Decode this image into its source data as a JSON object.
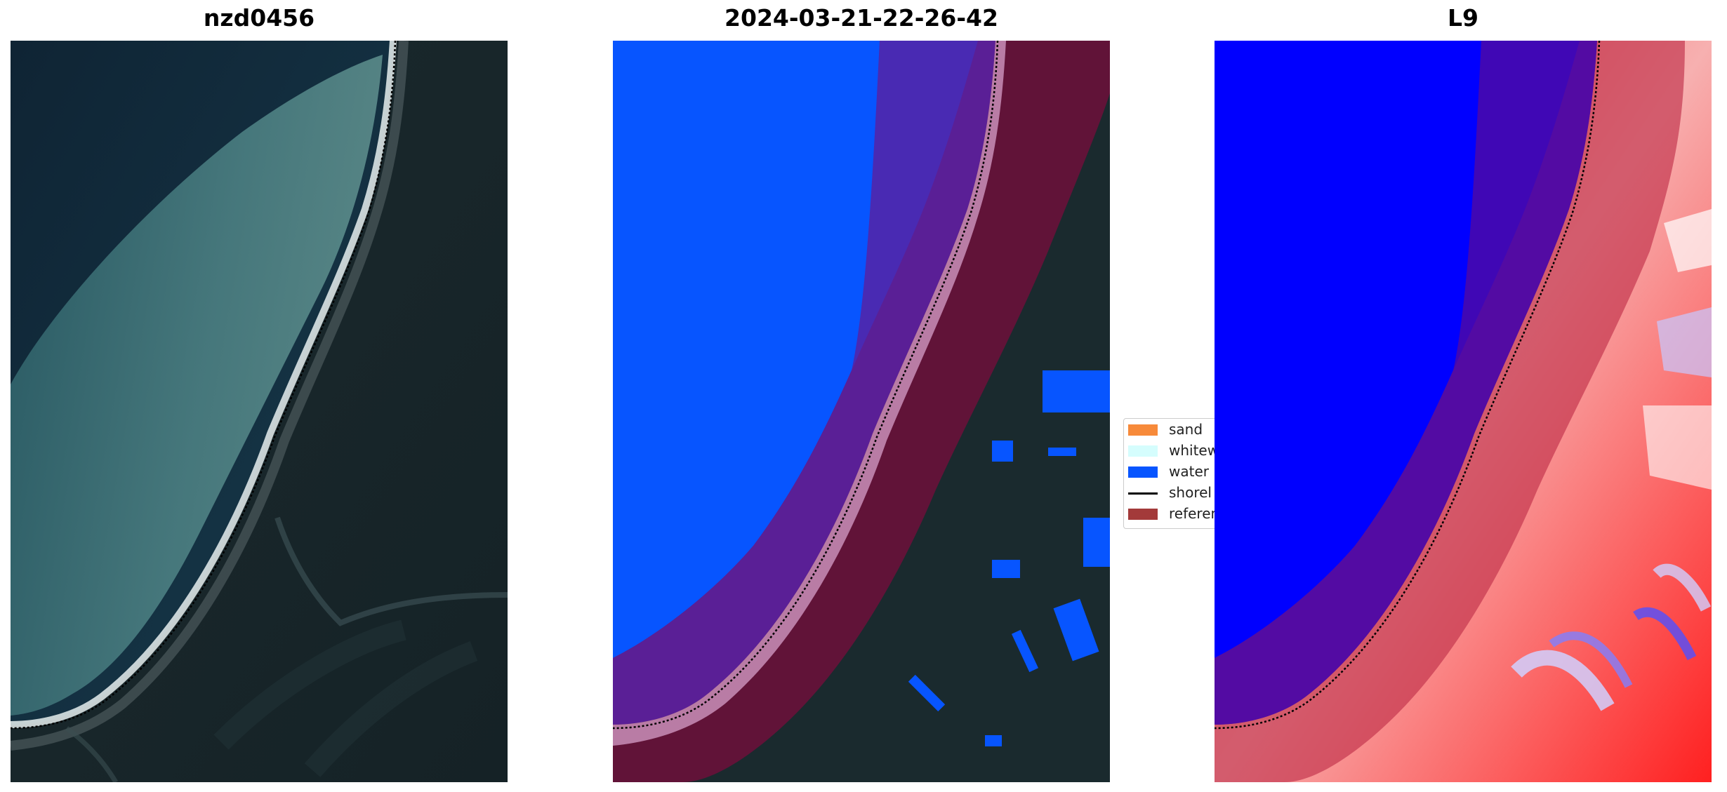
{
  "panels": [
    {
      "title": "nzd0456"
    },
    {
      "title": "2024-03-21-22-26-42"
    },
    {
      "title": "L9"
    }
  ],
  "legend": {
    "items": [
      {
        "label": "sand",
        "color": "#f78a3a"
      },
      {
        "label": "whitew",
        "color": "#d5fdfd"
      },
      {
        "label": "water",
        "color": "#0755ff"
      },
      {
        "label": "shorel",
        "color": "#000000"
      },
      {
        "label": "referen",
        "color": "#a33a3a"
      }
    ]
  },
  "colors": {
    "water_class": "#0755ff",
    "reference_buffer": "#7a0c3c",
    "index_positive": "#ff1a1a",
    "index_negative": "#0000ff"
  }
}
